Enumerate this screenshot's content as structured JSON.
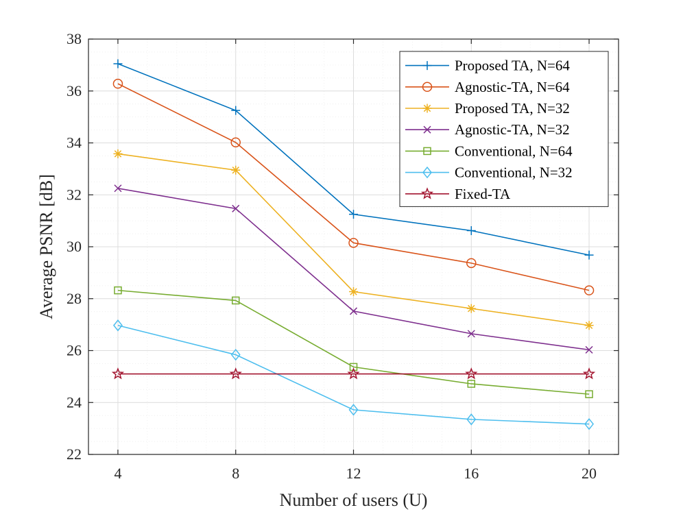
{
  "chart_data": {
    "type": "line",
    "xlabel": "Number of users (U)",
    "ylabel": "Average PSNR [dB]",
    "x": [
      4,
      8,
      12,
      16,
      20
    ],
    "xlim": [
      3,
      21
    ],
    "ylim": [
      22,
      38
    ],
    "xticks": [
      "4",
      "8",
      "12",
      "16",
      "20"
    ],
    "yticks": [
      "22",
      "24",
      "26",
      "28",
      "30",
      "32",
      "34",
      "36",
      "38"
    ],
    "grid": true,
    "legend_position": "top-right",
    "series": [
      {
        "name": "Proposed TA, N=64",
        "color": "#0072BD",
        "marker": "plus",
        "values": [
          37.05,
          35.25,
          31.25,
          30.62,
          29.68
        ]
      },
      {
        "name": "Agnostic-TA, N=64",
        "color": "#D95319",
        "marker": "circle",
        "values": [
          36.28,
          34.02,
          30.15,
          29.37,
          28.32
        ]
      },
      {
        "name": "Proposed TA, N=32",
        "color": "#EDB120",
        "marker": "asterisk",
        "values": [
          33.58,
          32.95,
          28.27,
          27.62,
          26.97
        ]
      },
      {
        "name": "Agnostic-TA, N=32",
        "color": "#7E2F8E",
        "marker": "cross",
        "values": [
          32.25,
          31.47,
          27.52,
          26.65,
          26.03
        ]
      },
      {
        "name": "Conventional, N=64",
        "color": "#77AC30",
        "marker": "square",
        "values": [
          28.32,
          27.93,
          25.37,
          24.72,
          24.32
        ]
      },
      {
        "name": "Conventional, N=32",
        "color": "#4DBEEE",
        "marker": "diamond",
        "values": [
          26.97,
          25.84,
          23.72,
          23.35,
          23.17
        ]
      },
      {
        "name": "Fixed-TA",
        "color": "#A2142F",
        "marker": "star",
        "values": [
          25.1,
          25.1,
          25.1,
          25.1,
          25.1
        ]
      }
    ]
  }
}
